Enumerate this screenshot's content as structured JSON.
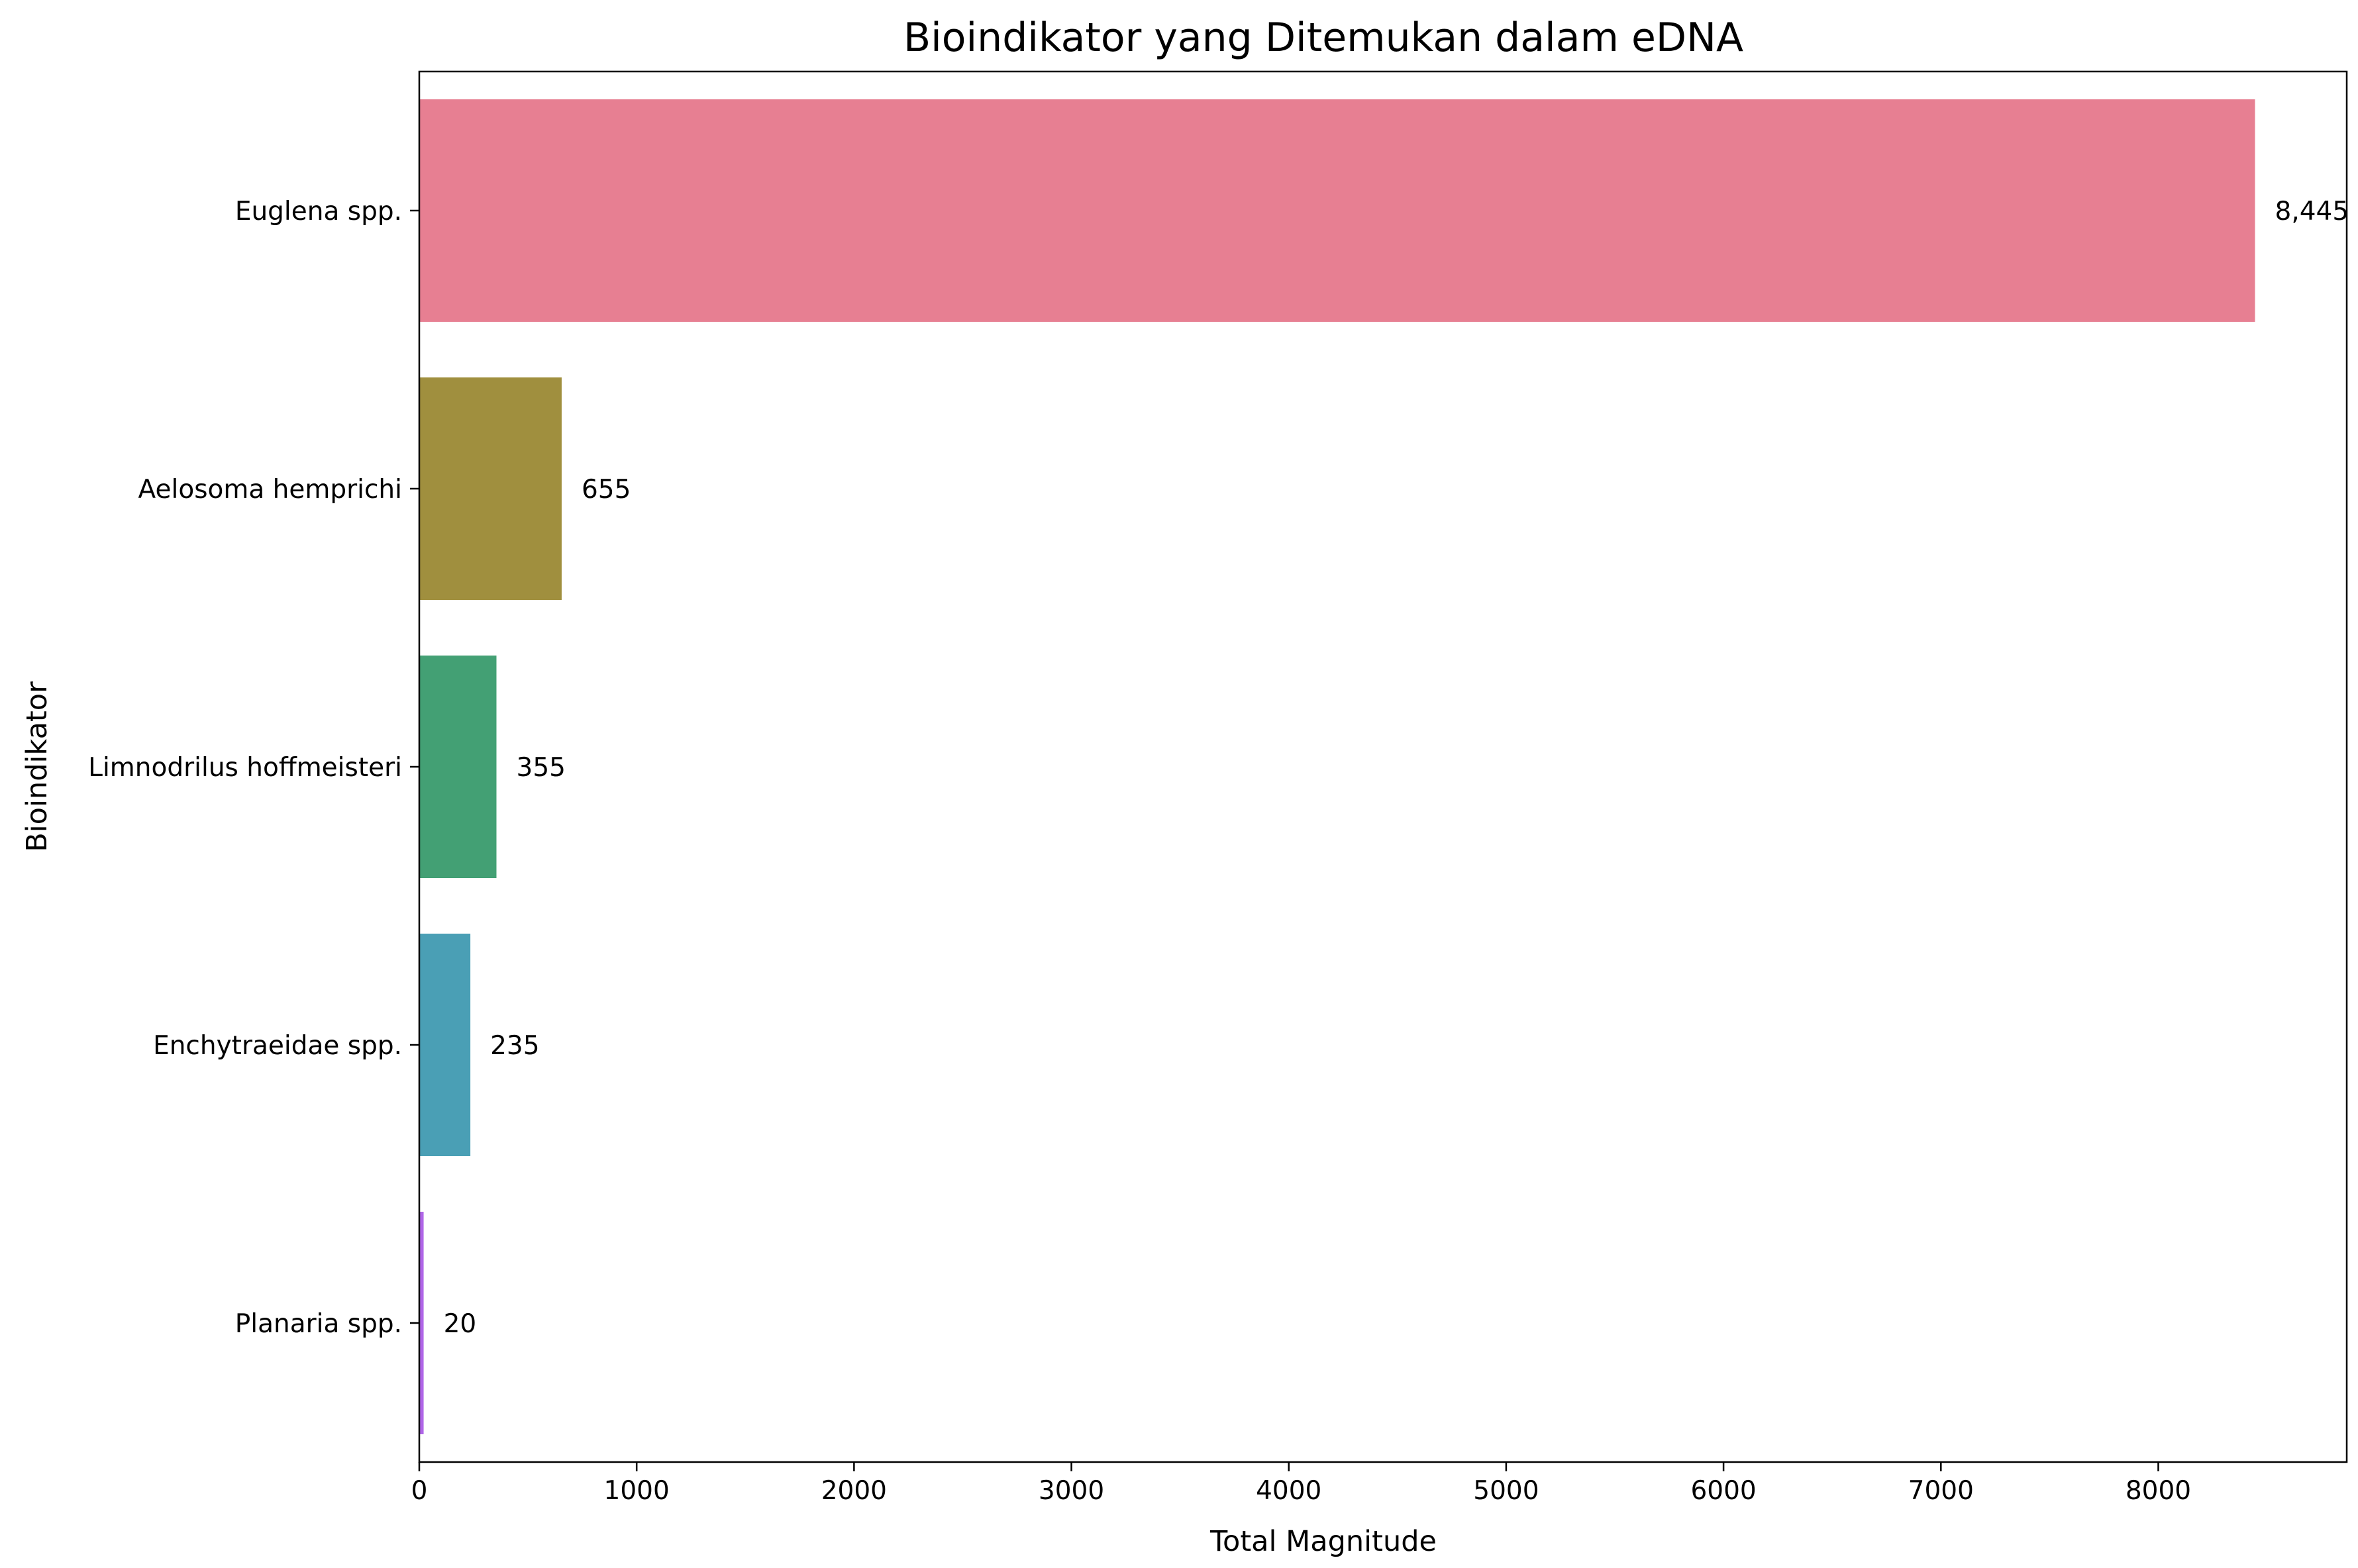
{
  "chart_data": {
    "type": "bar",
    "orientation": "horizontal",
    "title": "Bioindikator yang Ditemukan dalam eDNA",
    "xlabel": "Total Magnitude",
    "ylabel": "Bioindikator",
    "categories": [
      "Euglena spp.",
      "Aelosoma hemprichi",
      "Limnodrilus hoffmeisteri",
      "Enchytraeidae spp.",
      "Planaria spp."
    ],
    "values": [
      8445,
      655,
      355,
      235,
      20
    ],
    "value_labels": [
      "8,445",
      "655",
      "355",
      "235",
      "20"
    ],
    "colors": [
      "#e77f92",
      "#a08f3e",
      "#43a074",
      "#4a9fb5",
      "#b066e7"
    ],
    "xlim": [
      0,
      8867
    ],
    "xticks": [
      0,
      1000,
      2000,
      3000,
      4000,
      5000,
      6000,
      7000,
      8000
    ],
    "xtick_labels": [
      "0",
      "1000",
      "2000",
      "3000",
      "4000",
      "5000",
      "6000",
      "7000",
      "8000"
    ],
    "grid": false,
    "legend": "none"
  }
}
